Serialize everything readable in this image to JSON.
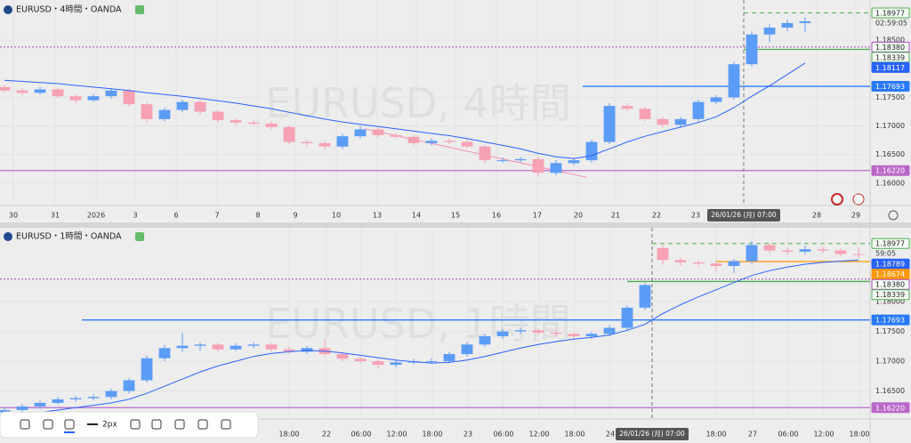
{
  "chart_data": [
    {
      "type": "candlestick",
      "title": "EURUSD・4時間・OANDA",
      "watermark": "EURUSD, 4時間",
      "up_color": "#5b9cf6",
      "down_color": "#f7a1b4",
      "xlim": [
        -0.25,
        48.65
      ],
      "ylim": [
        1.15609,
        1.19203
      ],
      "xticks": [
        {
          "value": 0.5,
          "label": "30"
        },
        {
          "value": 2.85,
          "label": "31"
        },
        {
          "value": 5.15,
          "label": "2026"
        },
        {
          "value": 7.35,
          "label": "3"
        },
        {
          "value": 9.65,
          "label": "6"
        },
        {
          "value": 11.95,
          "label": "7"
        },
        {
          "value": 14.25,
          "label": "8"
        },
        {
          "value": 16.35,
          "label": "9"
        },
        {
          "value": 18.65,
          "label": "10"
        },
        {
          "value": 20.95,
          "label": "13"
        },
        {
          "value": 23.15,
          "label": "14"
        },
        {
          "value": 25.35,
          "label": "15"
        },
        {
          "value": 27.65,
          "label": "16"
        },
        {
          "value": 29.95,
          "label": "17"
        },
        {
          "value": 32.25,
          "label": "20"
        },
        {
          "value": 34.35,
          "label": "21"
        },
        {
          "value": 36.65,
          "label": "22"
        },
        {
          "value": 38.85,
          "label": "23"
        },
        {
          "value": 45.65,
          "label": "28"
        },
        {
          "value": 47.85,
          "label": "29"
        }
      ],
      "yticks": [
        {
          "value": 1.185,
          "label": "1.18500"
        },
        {
          "value": 1.175,
          "label": "1.17500"
        },
        {
          "value": 1.17,
          "label": "1.17000"
        },
        {
          "value": 1.165,
          "label": "1.16500"
        },
        {
          "value": 1.16,
          "label": "1.16000"
        }
      ],
      "marker": {
        "value": 41.55,
        "label": "26/01/26 (月)  07:00"
      },
      "candles": [
        [
          1.1768,
          1.1772,
          1.1758,
          1.1762
        ],
        [
          1.1762,
          1.1766,
          1.1754,
          1.1758
        ],
        [
          1.1758,
          1.1768,
          1.1755,
          1.1764
        ],
        [
          1.1764,
          1.1767,
          1.1748,
          1.1752
        ],
        [
          1.1752,
          1.1756,
          1.174,
          1.1745
        ],
        [
          1.1745,
          1.1756,
          1.1742,
          1.1752
        ],
        [
          1.1752,
          1.1766,
          1.1748,
          1.1762
        ],
        [
          1.1762,
          1.1765,
          1.1734,
          1.1738
        ],
        [
          1.1738,
          1.1741,
          1.1706,
          1.1712
        ],
        [
          1.1712,
          1.1732,
          1.1708,
          1.1728
        ],
        [
          1.1728,
          1.1746,
          1.1724,
          1.1742
        ],
        [
          1.1742,
          1.1745,
          1.172,
          1.1725
        ],
        [
          1.1725,
          1.1728,
          1.1706,
          1.171
        ],
        [
          1.171,
          1.1714,
          1.1702,
          1.1706
        ],
        [
          1.1706,
          1.171,
          1.17,
          1.1704
        ],
        [
          1.1704,
          1.1708,
          1.1694,
          1.1698
        ],
        [
          1.1698,
          1.1701,
          1.1668,
          1.1672
        ],
        [
          1.1672,
          1.1676,
          1.1664,
          1.167
        ],
        [
          1.167,
          1.1674,
          1.1658,
          1.1664
        ],
        [
          1.1664,
          1.1686,
          1.166,
          1.1682
        ],
        [
          1.1682,
          1.17,
          1.1678,
          1.1694
        ],
        [
          1.1694,
          1.1697,
          1.168,
          1.1684
        ],
        [
          1.1684,
          1.1688,
          1.1677,
          1.1681
        ],
        [
          1.1681,
          1.1684,
          1.1666,
          1.167
        ],
        [
          1.167,
          1.1678,
          1.1666,
          1.1674
        ],
        [
          1.1674,
          1.1678,
          1.1668,
          1.1672
        ],
        [
          1.1672,
          1.1676,
          1.166,
          1.1664
        ],
        [
          1.1664,
          1.1667,
          1.1634,
          1.164
        ],
        [
          1.164,
          1.1645,
          1.1636,
          1.164
        ],
        [
          1.164,
          1.1646,
          1.1636,
          1.1642
        ],
        [
          1.1642,
          1.1646,
          1.1612,
          1.1618
        ],
        [
          1.1618,
          1.164,
          1.1614,
          1.1635
        ],
        [
          1.1635,
          1.1644,
          1.1631,
          1.164
        ],
        [
          1.164,
          1.1676,
          1.1636,
          1.1672
        ],
        [
          1.1672,
          1.174,
          1.1668,
          1.1735
        ],
        [
          1.1735,
          1.174,
          1.1726,
          1.173
        ],
        [
          1.173,
          1.1734,
          1.1708,
          1.1712
        ],
        [
          1.1712,
          1.1716,
          1.1697,
          1.1702
        ],
        [
          1.1702,
          1.1716,
          1.1698,
          1.1712
        ],
        [
          1.1712,
          1.1746,
          1.1708,
          1.1742
        ],
        [
          1.1742,
          1.1754,
          1.1738,
          1.175
        ],
        [
          1.175,
          1.1812,
          1.1746,
          1.1808
        ],
        [
          1.1808,
          1.1866,
          1.1804,
          1.186
        ],
        [
          1.186,
          1.1878,
          1.1846,
          1.1872
        ],
        [
          1.1872,
          1.1886,
          1.1866,
          1.188
        ],
        [
          1.188,
          1.189,
          1.1864,
          1.1883
        ]
      ],
      "ma": {
        "color": "#2962ff",
        "values": [
          1.178,
          1.1778,
          1.1776,
          1.1774,
          1.1771,
          1.1768,
          1.1765,
          1.1762,
          1.1758,
          1.1755,
          1.1752,
          1.1748,
          1.1744,
          1.174,
          1.1735,
          1.173,
          1.1724,
          1.1718,
          1.1712,
          1.1707,
          1.1703,
          1.1699,
          1.1695,
          1.1691,
          1.1687,
          1.1683,
          1.1678,
          1.1672,
          1.1666,
          1.166,
          1.1652,
          1.1646,
          1.1643,
          1.1648,
          1.166,
          1.1672,
          1.1682,
          1.169,
          1.1698,
          1.1706,
          1.1716,
          1.1732,
          1.1752,
          1.177,
          1.179,
          1.181
        ]
      },
      "trendlines": [
        {
          "x": [
            20.25,
            32.75
          ],
          "y": [
            1.1695,
            1.161
          ],
          "color": "#f48fb1"
        }
      ],
      "levels": [
        {
          "value": 1.18977,
          "label": "1.18977",
          "color": "#4caf50",
          "style": "dashed",
          "start": 41.55,
          "filled": false,
          "countdown": "02:59:05"
        },
        {
          "value": 1.1838,
          "label": "1.18380",
          "color": "#ab47bc",
          "style": "dotted",
          "start": -0.25,
          "filled": false
        },
        {
          "value": 1.18339,
          "label": "1.18339",
          "color": "#4caf50",
          "style": "solid",
          "start": 41.55,
          "filled": false
        },
        {
          "value": 1.18117,
          "label": "1.18117",
          "color": "#2962ff",
          "style": "none",
          "start": 41.55,
          "filled": true
        },
        {
          "value": 1.17693,
          "label": "1.17693",
          "color": "#2979ff",
          "style": "solid",
          "start": 32.5,
          "filled": true
        },
        {
          "value": 1.1622,
          "label": "1.16220",
          "color": "#ba68c8",
          "style": "solid",
          "start": -0.25,
          "filled": true
        }
      ]
    },
    {
      "type": "candlestick",
      "title": "EURUSD・1時間・OANDA",
      "watermark": "EURUSD, 1時間",
      "up_color": "#5b9cf6",
      "down_color": "#f7a1b4",
      "xlim": [
        -0.25,
        48.65
      ],
      "ylim": [
        1.1603,
        1.19242
      ],
      "xticks": [
        {
          "value": 16,
          "label": "18:00"
        },
        {
          "value": 18.1,
          "label": "22"
        },
        {
          "value": 20.05,
          "label": "06:00"
        },
        {
          "value": 22.05,
          "label": "12:00"
        },
        {
          "value": 24.05,
          "label": "18:00"
        },
        {
          "value": 26.05,
          "label": "23"
        },
        {
          "value": 28.05,
          "label": "06:00"
        },
        {
          "value": 30.05,
          "label": "12:00"
        },
        {
          "value": 32.05,
          "label": "18:00"
        },
        {
          "value": 34.05,
          "label": "24"
        },
        {
          "value": 40,
          "label": "18:00"
        },
        {
          "value": 42.05,
          "label": "27"
        },
        {
          "value": 44.05,
          "label": "06:00"
        },
        {
          "value": 46.05,
          "label": "12:00"
        },
        {
          "value": 48.05,
          "label": "18:00"
        }
      ],
      "yticks": [
        {
          "value": 1.18,
          "label": "1.18000"
        },
        {
          "value": 1.175,
          "label": "1.17500"
        },
        {
          "value": 1.17,
          "label": "1.17000"
        },
        {
          "value": 1.165,
          "label": "1.16500"
        }
      ],
      "marker": {
        "value": 36.4,
        "label": "26/01/26 (月)  07:00"
      },
      "candles": [
        [
          1.1614,
          1.1622,
          1.161,
          1.1618
        ],
        [
          1.1618,
          1.1628,
          1.1615,
          1.1624
        ],
        [
          1.1624,
          1.1634,
          1.162,
          1.163
        ],
        [
          1.163,
          1.164,
          1.1627,
          1.1636
        ],
        [
          1.1636,
          1.1642,
          1.1632,
          1.1638
        ],
        [
          1.1638,
          1.1644,
          1.1634,
          1.164
        ],
        [
          1.164,
          1.1654,
          1.1636,
          1.165
        ],
        [
          1.165,
          1.1672,
          1.1646,
          1.1668
        ],
        [
          1.1668,
          1.171,
          1.1664,
          1.1705
        ],
        [
          1.1705,
          1.1727,
          1.17,
          1.1722
        ],
        [
          1.1722,
          1.1748,
          1.1716,
          1.1726
        ],
        [
          1.1726,
          1.1732,
          1.1718,
          1.1728
        ],
        [
          1.1728,
          1.1731,
          1.1716,
          1.172
        ],
        [
          1.172,
          1.173,
          1.1717,
          1.1726
        ],
        [
          1.1726,
          1.1732,
          1.1722,
          1.1728
        ],
        [
          1.1728,
          1.1731,
          1.1716,
          1.172
        ],
        [
          1.172,
          1.1724,
          1.1712,
          1.1716
        ],
        [
          1.1716,
          1.1726,
          1.1712,
          1.1722
        ],
        [
          1.1722,
          1.1738,
          1.1708,
          1.1712
        ],
        [
          1.1712,
          1.1715,
          1.17,
          1.1704
        ],
        [
          1.1704,
          1.1708,
          1.1696,
          1.17
        ],
        [
          1.17,
          1.1703,
          1.1688,
          1.1694
        ],
        [
          1.1694,
          1.1702,
          1.169,
          1.1698
        ],
        [
          1.1698,
          1.1704,
          1.1695,
          1.17
        ],
        [
          1.17,
          1.1705,
          1.1696,
          1.17
        ],
        [
          1.17,
          1.1716,
          1.1697,
          1.1712
        ],
        [
          1.1712,
          1.1732,
          1.1708,
          1.1728
        ],
        [
          1.1728,
          1.1746,
          1.1724,
          1.1742
        ],
        [
          1.1742,
          1.1754,
          1.1738,
          1.175
        ],
        [
          1.175,
          1.1756,
          1.1746,
          1.1752
        ],
        [
          1.1752,
          1.1755,
          1.1744,
          1.1748
        ],
        [
          1.1748,
          1.1752,
          1.1742,
          1.1746
        ],
        [
          1.1746,
          1.1749,
          1.1738,
          1.1742
        ],
        [
          1.1742,
          1.175,
          1.1738,
          1.1746
        ],
        [
          1.1746,
          1.176,
          1.1742,
          1.1756
        ],
        [
          1.1756,
          1.1794,
          1.1752,
          1.179
        ],
        [
          1.179,
          1.1832,
          1.1786,
          1.1828
        ],
        [
          1.189,
          1.1896,
          1.1862,
          1.187
        ],
        [
          1.187,
          1.1874,
          1.186,
          1.1866
        ],
        [
          1.1866,
          1.187,
          1.1858,
          1.1864
        ],
        [
          1.1864,
          1.1868,
          1.185,
          1.186
        ],
        [
          1.186,
          1.1872,
          1.1848,
          1.1868
        ],
        [
          1.1868,
          1.1902,
          1.1864,
          1.1895
        ],
        [
          1.1895,
          1.1898,
          1.1882,
          1.1886
        ],
        [
          1.1886,
          1.189,
          1.188,
          1.1884
        ],
        [
          1.1884,
          1.1894,
          1.188,
          1.1888
        ],
        [
          1.1888,
          1.1892,
          1.1882,
          1.1886
        ],
        [
          1.1886,
          1.1889,
          1.1876,
          1.188
        ],
        [
          1.188,
          1.189,
          1.1874,
          1.1879
        ]
      ],
      "ma": {
        "color": "#2962ff",
        "values": [
          1.1605,
          1.161,
          1.1614,
          1.1618,
          1.1622,
          1.1626,
          1.163,
          1.1636,
          1.1646,
          1.1658,
          1.167,
          1.1682,
          1.1692,
          1.17,
          1.1708,
          1.1713,
          1.1716,
          1.1718,
          1.1717,
          1.1714,
          1.171,
          1.1706,
          1.1702,
          1.1699,
          1.1697,
          1.1698,
          1.1702,
          1.1708,
          1.1715,
          1.1722,
          1.1728,
          1.1733,
          1.1737,
          1.174,
          1.1744,
          1.1752,
          1.1762,
          1.178,
          1.1795,
          1.1808,
          1.182,
          1.1832,
          1.1844,
          1.1852,
          1.1858,
          1.1863,
          1.1866,
          1.1868,
          1.187
        ]
      },
      "trendlines": [],
      "levels": [
        {
          "value": 1.18977,
          "label": "1.18977",
          "color": "#4caf50",
          "style": "dashed",
          "start": 36.4,
          "filled": false,
          "countdown": "59:05"
        },
        {
          "value": 1.18789,
          "label": "1.18789",
          "color": "#2962ff",
          "style": "none",
          "start": 48,
          "filled": true
        },
        {
          "value": 1.18674,
          "label": "1.18674",
          "color": "#ff9800",
          "style": "solid",
          "start": 40,
          "filled": true
        },
        {
          "value": 1.1838,
          "label": "1.18380",
          "color": "#ab47bc",
          "style": "dotted",
          "start": -0.25,
          "filled": false
        },
        {
          "value": 1.18339,
          "label": "1.18339",
          "color": "#4caf50",
          "style": "solid",
          "start": 35,
          "filled": false
        },
        {
          "value": 1.17693,
          "label": "1.17693",
          "color": "#2979ff",
          "style": "solid",
          "start": 4.35,
          "filled": true
        },
        {
          "value": 1.1622,
          "label": "1.16220",
          "color": "#ba68c8",
          "style": "solid",
          "start": -0.25,
          "filled": true
        }
      ]
    }
  ],
  "toolbar": {
    "width_label": "2px"
  }
}
